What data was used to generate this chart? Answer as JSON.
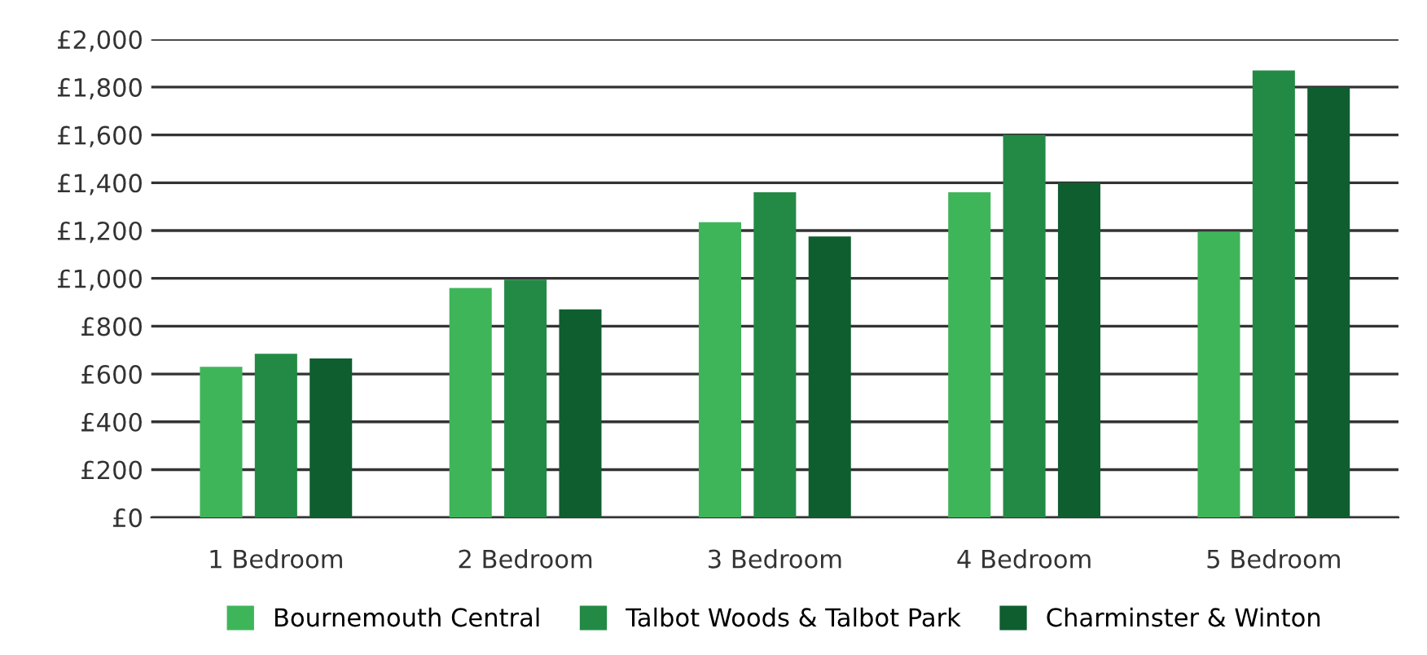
{
  "chart_data": {
    "type": "bar",
    "categories": [
      "1 Bedroom",
      "2 Bedroom",
      "3 Bedroom",
      "4 Bedroom",
      "5 Bedroom"
    ],
    "series": [
      {
        "name": "Bournemouth Central",
        "color": "#3fb55a",
        "values": [
          630,
          960,
          1235,
          1360,
          1195
        ]
      },
      {
        "name": "Talbot Woods & Talbot Park",
        "color": "#238a45",
        "values": [
          685,
          995,
          1360,
          1600,
          1870
        ]
      },
      {
        "name": "Charminster & Winton",
        "color": "#0f5e30",
        "values": [
          665,
          870,
          1175,
          1400,
          1800
        ]
      }
    ],
    "ylim": [
      0,
      2000
    ],
    "yticks": [
      {
        "value": 0,
        "label": "£0"
      },
      {
        "value": 200,
        "label": "£200"
      },
      {
        "value": 400,
        "label": "£400"
      },
      {
        "value": 600,
        "label": "£600"
      },
      {
        "value": 800,
        "label": "£800"
      },
      {
        "value": 1000,
        "label": "£1,000"
      },
      {
        "value": 1200,
        "label": "£1,200"
      },
      {
        "value": 1400,
        "label": "£1,400"
      },
      {
        "value": 1600,
        "label": "£1,600"
      },
      {
        "value": 1800,
        "label": "£1,800"
      },
      {
        "value": 2000,
        "label": "£2,000"
      }
    ],
    "grid": "y",
    "legend": "bottom"
  }
}
